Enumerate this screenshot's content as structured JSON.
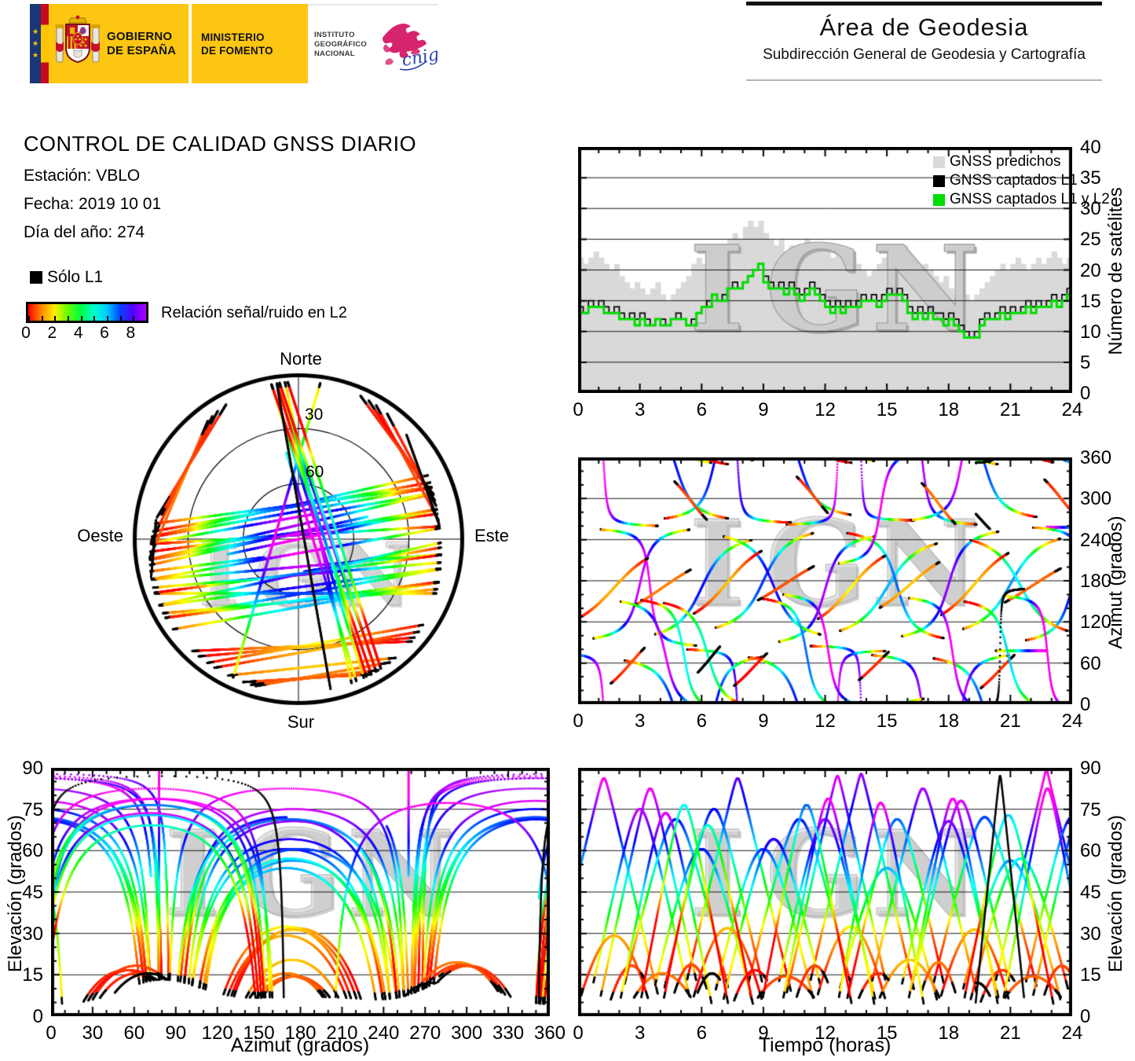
{
  "branding": {
    "gobierno_line1": "GOBIERNO",
    "gobierno_line2": "DE ESPAÑA",
    "ministerio_line1": "MINISTERIO",
    "ministerio_line2": "DE FOMENTO",
    "instituto_line1": "INSTITUTO",
    "instituto_line2": "GEOGRÁFICO",
    "instituto_line3": "NACIONAL",
    "cnig": "cnig"
  },
  "header": {
    "area_title": "Área de Geodesia",
    "area_subtitle": "Subdirección General de Geodesia y Cartografía"
  },
  "report": {
    "title": "CONTROL DE CALIDAD GNSS DIARIO",
    "station": "Estación: VBLO",
    "date": "Fecha: 2019 10 01",
    "doy": "Día del año: 274"
  },
  "snr_legend": {
    "solo_l1": "Sólo L1",
    "caption": "Relación señal/ruido en L2",
    "tick_labels": [
      "0",
      "2",
      "4",
      "6",
      "8"
    ],
    "tick_values": [
      0,
      2,
      4,
      6,
      8
    ],
    "scale_max": 9,
    "colormap_stops": [
      "#ff0000",
      "#ff8800",
      "#ffee00",
      "#66ff00",
      "#00ff44",
      "#00ffcc",
      "#00ccff",
      "#0044ff",
      "#5500ff",
      "#aa00ff"
    ]
  },
  "skyplot": {
    "north": "Norte",
    "south": "Sur",
    "east": "Este",
    "west": "Oeste",
    "ring_labels": [
      "30",
      "60"
    ]
  },
  "watermark": "IGN",
  "charts": {
    "sats": {
      "ylabel": "Número de satélites",
      "xticks": [
        0,
        3,
        6,
        9,
        12,
        15,
        18,
        21,
        24
      ],
      "yticks": [
        0,
        5,
        10,
        15,
        20,
        25,
        30,
        35,
        40
      ],
      "xrange": [
        0,
        24
      ],
      "yrange": [
        0,
        40
      ],
      "ygrid": [
        5,
        10,
        15,
        20,
        25,
        30,
        35
      ],
      "legend": [
        {
          "label": "GNSS predichos",
          "color": "#d9d9d9"
        },
        {
          "label": "GNSS captados L1",
          "color": "#000000"
        },
        {
          "label": "GNSS captados L1 y L2",
          "color": "#00dd00"
        }
      ]
    },
    "azimuth": {
      "ylabel": "Azimut (grados)",
      "xticks": [
        0,
        3,
        6,
        9,
        12,
        15,
        18,
        21,
        24
      ],
      "yticks": [
        0,
        60,
        120,
        180,
        240,
        300,
        360
      ],
      "xrange": [
        0,
        24
      ],
      "yrange": [
        0,
        360
      ],
      "ygrid": [
        60,
        120,
        180,
        240,
        300
      ]
    },
    "elev_az": {
      "xlabel": "Azimut (grados)",
      "ylabel": "Elevación (grados)",
      "xticks": [
        0,
        30,
        60,
        90,
        120,
        150,
        180,
        210,
        240,
        270,
        300,
        330,
        360
      ],
      "yticks": [
        0,
        15,
        30,
        45,
        60,
        75,
        90
      ],
      "xrange": [
        0,
        360
      ],
      "yrange": [
        0,
        90
      ],
      "ygrid": [
        15,
        30,
        45,
        60,
        75
      ]
    },
    "elev_time": {
      "xlabel": "Tiempo (horas)",
      "ylabel": "Elevación (grados)",
      "xticks": [
        0,
        3,
        6,
        9,
        12,
        15,
        18,
        21,
        24
      ],
      "yticks": [
        0,
        15,
        30,
        45,
        60,
        75,
        90
      ],
      "xrange": [
        0,
        24
      ],
      "yrange": [
        0,
        90
      ],
      "ygrid": [
        15,
        30,
        45,
        60,
        75
      ]
    }
  },
  "chart_data": [
    {
      "type": "area",
      "name": "satelites_vs_tiempo",
      "ylabel": "Número de satélites",
      "xlim": [
        0,
        24
      ],
      "ylim": [
        0,
        40
      ],
      "x_step_hours": 0.25,
      "series": [
        {
          "name": "GNSS predichos",
          "color": "#d9d9d9",
          "values": [
            22,
            21,
            22,
            23,
            22,
            21,
            20,
            21,
            19,
            18,
            17,
            18,
            17,
            16,
            17,
            18,
            16,
            15,
            16,
            17,
            18,
            19,
            21,
            22,
            21,
            22,
            23,
            22,
            24,
            25,
            26,
            25,
            27,
            28,
            27,
            28,
            26,
            25,
            24,
            25,
            23,
            24,
            23,
            24,
            25,
            24,
            23,
            24,
            23,
            22,
            23,
            22,
            21,
            22,
            21,
            20,
            19,
            20,
            21,
            22,
            23,
            24,
            23,
            24,
            22,
            21,
            20,
            21,
            20,
            19,
            18,
            19,
            17,
            16,
            15,
            16,
            15,
            16,
            17,
            18,
            19,
            20,
            21,
            20,
            21,
            22,
            21,
            20,
            21,
            22,
            21,
            22,
            23,
            22,
            21,
            22
          ]
        },
        {
          "name": "GNSS captados L1",
          "color": "#000000",
          "values": [
            14,
            13,
            15,
            14,
            15,
            14,
            13,
            14,
            13,
            12,
            13,
            12,
            13,
            12,
            11,
            12,
            12,
            11,
            12,
            13,
            12,
            11,
            12,
            13,
            14,
            15,
            16,
            15,
            16,
            17,
            18,
            17,
            18,
            19,
            20,
            21,
            19,
            18,
            17,
            18,
            17,
            18,
            17,
            16,
            17,
            18,
            17,
            16,
            15,
            14,
            15,
            14,
            15,
            14,
            15,
            16,
            15,
            16,
            15,
            16,
            17,
            16,
            17,
            16,
            14,
            13,
            14,
            13,
            14,
            13,
            13,
            12,
            13,
            12,
            11,
            10,
            9,
            10,
            12,
            13,
            12,
            13,
            14,
            13,
            14,
            13,
            14,
            15,
            14,
            15,
            14,
            15,
            16,
            15,
            16,
            17
          ]
        },
        {
          "name": "GNSS captados L1 y L2",
          "color": "#00dd00",
          "values": [
            13,
            13,
            14,
            14,
            14,
            13,
            13,
            13,
            12,
            12,
            12,
            11,
            12,
            11,
            11,
            12,
            11,
            11,
            12,
            12,
            12,
            11,
            11,
            13,
            14,
            14,
            16,
            15,
            15,
            17,
            17,
            17,
            18,
            19,
            20,
            21,
            18,
            17,
            17,
            17,
            16,
            17,
            16,
            15,
            16,
            17,
            16,
            15,
            14,
            13,
            14,
            13,
            14,
            14,
            14,
            15,
            15,
            15,
            14,
            15,
            16,
            16,
            16,
            15,
            13,
            12,
            13,
            12,
            13,
            12,
            12,
            11,
            12,
            11,
            10,
            9,
            9,
            9,
            11,
            12,
            12,
            12,
            13,
            12,
            13,
            13,
            13,
            14,
            13,
            14,
            14,
            14,
            15,
            14,
            15,
            16
          ]
        }
      ]
    },
    {
      "type": "scatter",
      "name": "skyplot_elevacion_azimut",
      "note": "polar sky tracks, colour = señal/ruido L2, derived from satellite_passes",
      "rings_deg": [
        30,
        60
      ]
    },
    {
      "type": "scatter",
      "name": "azimut_vs_tiempo",
      "xlim": [
        0,
        24
      ],
      "ylim": [
        0,
        360
      ],
      "note": "derived from satellite_passes"
    },
    {
      "type": "scatter",
      "name": "elevacion_vs_azimut",
      "xlim": [
        0,
        360
      ],
      "ylim": [
        0,
        90
      ],
      "note": "derived from satellite_passes"
    },
    {
      "type": "scatter",
      "name": "elevacion_vs_tiempo",
      "xlim": [
        0,
        24
      ],
      "ylim": [
        0,
        90
      ],
      "note": "derived from satellite_passes"
    }
  ],
  "satellite_passes": {
    "format": [
      "rise_hour",
      "duration_hours",
      "azimuth_rise_deg",
      "azimuth_set_deg",
      "hue_bias",
      "l1_only"
    ],
    "passes": [
      [
        -1.5,
        5.5,
        75,
        260,
        20,
        0
      ],
      [
        0.5,
        5.0,
        95,
        255,
        40,
        0
      ],
      [
        2.0,
        5.5,
        65,
        270,
        0,
        0
      ],
      [
        3.5,
        5.0,
        100,
        240,
        40,
        0
      ],
      [
        5.0,
        5.5,
        80,
        265,
        -20,
        0
      ],
      [
        6.5,
        5.0,
        110,
        250,
        30,
        0
      ],
      [
        8.0,
        5.5,
        70,
        275,
        0,
        0
      ],
      [
        9.5,
        5.0,
        90,
        245,
        45,
        0
      ],
      [
        11.0,
        5.5,
        85,
        268,
        -10,
        0
      ],
      [
        12.5,
        5.0,
        105,
        235,
        30,
        0
      ],
      [
        14.0,
        5.5,
        72,
        262,
        10,
        0
      ],
      [
        15.5,
        5.0,
        98,
        252,
        40,
        0
      ],
      [
        17.0,
        5.5,
        68,
        272,
        -15,
        0
      ],
      [
        18.5,
        5.0,
        108,
        242,
        25,
        0
      ],
      [
        20.0,
        5.5,
        78,
        258,
        35,
        0
      ],
      [
        21.5,
        5.0,
        92,
        248,
        0,
        0
      ],
      [
        1.0,
        5.0,
        255,
        85,
        30,
        0
      ],
      [
        4.0,
        5.2,
        270,
        70,
        -10,
        0
      ],
      [
        7.0,
        5.0,
        245,
        100,
        40,
        0
      ],
      [
        10.0,
        5.2,
        262,
        78,
        10,
        0
      ],
      [
        13.0,
        5.0,
        250,
        95,
        -20,
        0
      ],
      [
        16.0,
        5.2,
        268,
        72,
        35,
        0
      ],
      [
        19.0,
        5.0,
        240,
        105,
        0,
        0
      ],
      [
        22.0,
        5.2,
        258,
        88,
        20,
        0
      ],
      [
        0.0,
        3.5,
        125,
        215,
        0,
        0
      ],
      [
        2.5,
        3.2,
        140,
        200,
        20,
        0
      ],
      [
        5.5,
        3.5,
        130,
        225,
        -10,
        0
      ],
      [
        8.5,
        3.2,
        148,
        205,
        10,
        0
      ],
      [
        11.5,
        3.5,
        122,
        218,
        0,
        0
      ],
      [
        14.5,
        3.2,
        138,
        210,
        25,
        0
      ],
      [
        17.5,
        3.5,
        128,
        222,
        -5,
        0
      ],
      [
        20.5,
        3.2,
        145,
        202,
        15,
        0
      ],
      [
        1.5,
        2.2,
        28,
        95,
        0,
        0
      ],
      [
        4.5,
        2.0,
        330,
        262,
        0,
        0
      ],
      [
        7.5,
        2.2,
        25,
        88,
        -10,
        0
      ],
      [
        10.5,
        2.0,
        335,
        268,
        0,
        0
      ],
      [
        13.5,
        2.2,
        32,
        92,
        0,
        0
      ],
      [
        16.5,
        2.0,
        328,
        258,
        10,
        0
      ],
      [
        19.5,
        2.2,
        22,
        85,
        0,
        0
      ],
      [
        22.5,
        2.0,
        332,
        265,
        0,
        0
      ],
      [
        2.0,
        4.5,
        150,
        352,
        50,
        0
      ],
      [
        9.9,
        4.5,
        160,
        355,
        45,
        0
      ],
      [
        12.6,
        4.2,
        205,
        8,
        50,
        0
      ],
      [
        16.0,
        4.4,
        155,
        350,
        40,
        0
      ],
      [
        20.6,
        4.4,
        158,
        348,
        50,
        0
      ],
      [
        3.0,
        4.3,
        152,
        350,
        -75,
        0
      ],
      [
        4.1,
        4.4,
        148,
        356,
        -60,
        0
      ],
      [
        8.9,
        4.4,
        154,
        352,
        -40,
        0
      ],
      [
        18.7,
        4.4,
        150,
        353,
        -50,
        0
      ],
      [
        19.3,
        2.4,
        352,
        168,
        0,
        1
      ],
      [
        5.6,
        1.8,
        40,
        100,
        0,
        1
      ],
      [
        18.6,
        1.6,
        300,
        250,
        0,
        1
      ]
    ]
  }
}
